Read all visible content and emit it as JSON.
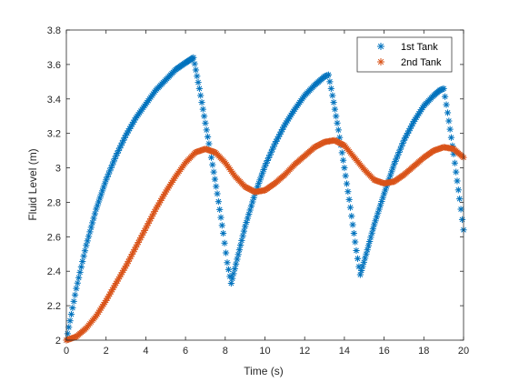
{
  "chart_data": {
    "type": "scatter",
    "xlabel": "Time (s)",
    "ylabel": "Fluid Level (m)",
    "xlim": [
      0,
      20
    ],
    "ylim": [
      2,
      3.8
    ],
    "xticks": [
      "0",
      "2",
      "4",
      "6",
      "8",
      "10",
      "12",
      "14",
      "16",
      "18",
      "20"
    ],
    "yticks": [
      "2",
      "2.2",
      "2.4",
      "2.6",
      "2.8",
      "3",
      "3.2",
      "3.4",
      "3.6",
      "3.8"
    ],
    "grid": false,
    "legend_position": "top-right",
    "marker": "asterisk",
    "series": [
      {
        "name": "1st Tank",
        "color": "#0072BD",
        "points": [
          [
            0,
            2.0
          ],
          [
            0.5,
            2.3
          ],
          [
            1,
            2.55
          ],
          [
            1.5,
            2.76
          ],
          [
            2,
            2.93
          ],
          [
            2.5,
            3.07
          ],
          [
            3,
            3.19
          ],
          [
            3.5,
            3.29
          ],
          [
            4,
            3.37
          ],
          [
            4.5,
            3.45
          ],
          [
            5,
            3.51
          ],
          [
            5.5,
            3.57
          ],
          [
            6,
            3.61
          ],
          [
            6.4,
            3.64
          ],
          [
            6.7,
            3.46
          ],
          [
            7,
            3.26
          ],
          [
            7.3,
            3.06
          ],
          [
            7.6,
            2.85
          ],
          [
            7.9,
            2.62
          ],
          [
            8.1,
            2.45
          ],
          [
            8.3,
            2.33
          ],
          [
            8.6,
            2.47
          ],
          [
            9,
            2.66
          ],
          [
            9.5,
            2.85
          ],
          [
            10,
            3.01
          ],
          [
            10.5,
            3.14
          ],
          [
            11,
            3.25
          ],
          [
            11.5,
            3.34
          ],
          [
            12,
            3.42
          ],
          [
            12.5,
            3.48
          ],
          [
            13,
            3.53
          ],
          [
            13.2,
            3.54
          ],
          [
            13.4,
            3.42
          ],
          [
            13.7,
            3.22
          ],
          [
            14,
            3.0
          ],
          [
            14.3,
            2.77
          ],
          [
            14.6,
            2.52
          ],
          [
            14.8,
            2.38
          ],
          [
            15.1,
            2.5
          ],
          [
            15.5,
            2.67
          ],
          [
            16,
            2.85
          ],
          [
            16.5,
            3.02
          ],
          [
            17,
            3.16
          ],
          [
            17.5,
            3.27
          ],
          [
            18,
            3.36
          ],
          [
            18.5,
            3.42
          ],
          [
            18.8,
            3.45
          ],
          [
            19,
            3.46
          ],
          [
            19.2,
            3.32
          ],
          [
            19.5,
            3.08
          ],
          [
            19.8,
            2.82
          ],
          [
            20,
            2.64
          ]
        ]
      },
      {
        "name": "2nd Tank",
        "color": "#D95319",
        "points": [
          [
            0,
            2.0
          ],
          [
            0.5,
            2.02
          ],
          [
            1,
            2.07
          ],
          [
            1.5,
            2.14
          ],
          [
            2,
            2.23
          ],
          [
            2.5,
            2.33
          ],
          [
            3,
            2.43
          ],
          [
            3.5,
            2.54
          ],
          [
            4,
            2.65
          ],
          [
            4.5,
            2.76
          ],
          [
            5,
            2.86
          ],
          [
            5.5,
            2.95
          ],
          [
            6,
            3.03
          ],
          [
            6.5,
            3.09
          ],
          [
            7,
            3.11
          ],
          [
            7.5,
            3.09
          ],
          [
            8,
            3.03
          ],
          [
            8.5,
            2.95
          ],
          [
            9,
            2.89
          ],
          [
            9.5,
            2.86
          ],
          [
            10,
            2.87
          ],
          [
            10.5,
            2.91
          ],
          [
            11,
            2.96
          ],
          [
            11.5,
            3.02
          ],
          [
            12,
            3.07
          ],
          [
            12.5,
            3.12
          ],
          [
            13,
            3.15
          ],
          [
            13.5,
            3.16
          ],
          [
            14,
            3.13
          ],
          [
            14.5,
            3.06
          ],
          [
            15,
            2.99
          ],
          [
            15.5,
            2.93
          ],
          [
            16,
            2.91
          ],
          [
            16.5,
            2.92
          ],
          [
            17,
            2.96
          ],
          [
            17.5,
            3.01
          ],
          [
            18,
            3.06
          ],
          [
            18.5,
            3.1
          ],
          [
            19,
            3.12
          ],
          [
            19.5,
            3.11
          ],
          [
            20,
            3.06
          ]
        ]
      }
    ]
  }
}
